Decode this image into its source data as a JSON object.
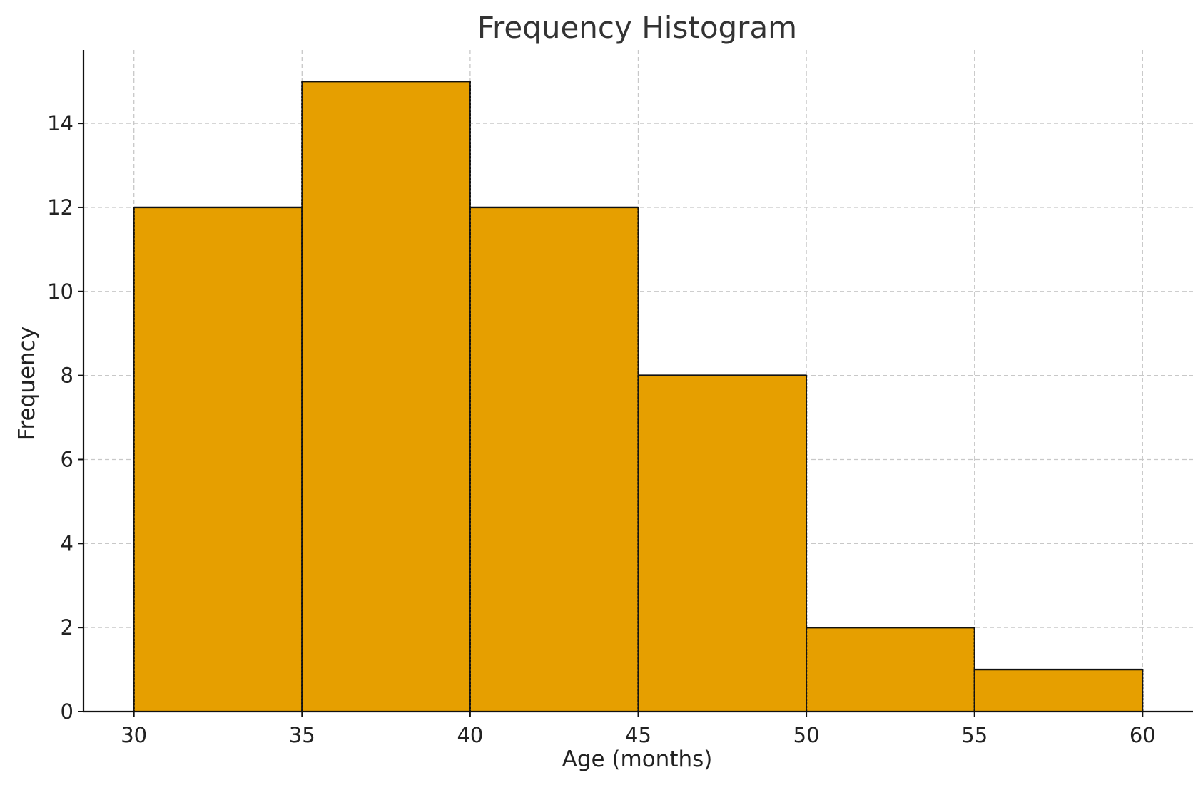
{
  "chart_data": {
    "type": "bar",
    "title": "Frequency Histogram",
    "xlabel": "Age (months)",
    "ylabel": "Frequency",
    "bins": [
      {
        "start": 30,
        "end": 35,
        "count": 12
      },
      {
        "start": 35,
        "end": 40,
        "count": 15
      },
      {
        "start": 40,
        "end": 45,
        "count": 12
      },
      {
        "start": 45,
        "end": 50,
        "count": 8
      },
      {
        "start": 50,
        "end": 55,
        "count": 2
      },
      {
        "start": 55,
        "end": 60,
        "count": 1
      }
    ],
    "xticks": [
      30,
      35,
      40,
      45,
      50,
      55,
      60
    ],
    "yticks": [
      0,
      2,
      4,
      6,
      8,
      10,
      12,
      14
    ],
    "xlim": [
      28.5,
      61.5
    ],
    "ylim": [
      0,
      15.75
    ],
    "grid": true,
    "bar_color": "#E69F00",
    "edge_color": "#111111"
  }
}
